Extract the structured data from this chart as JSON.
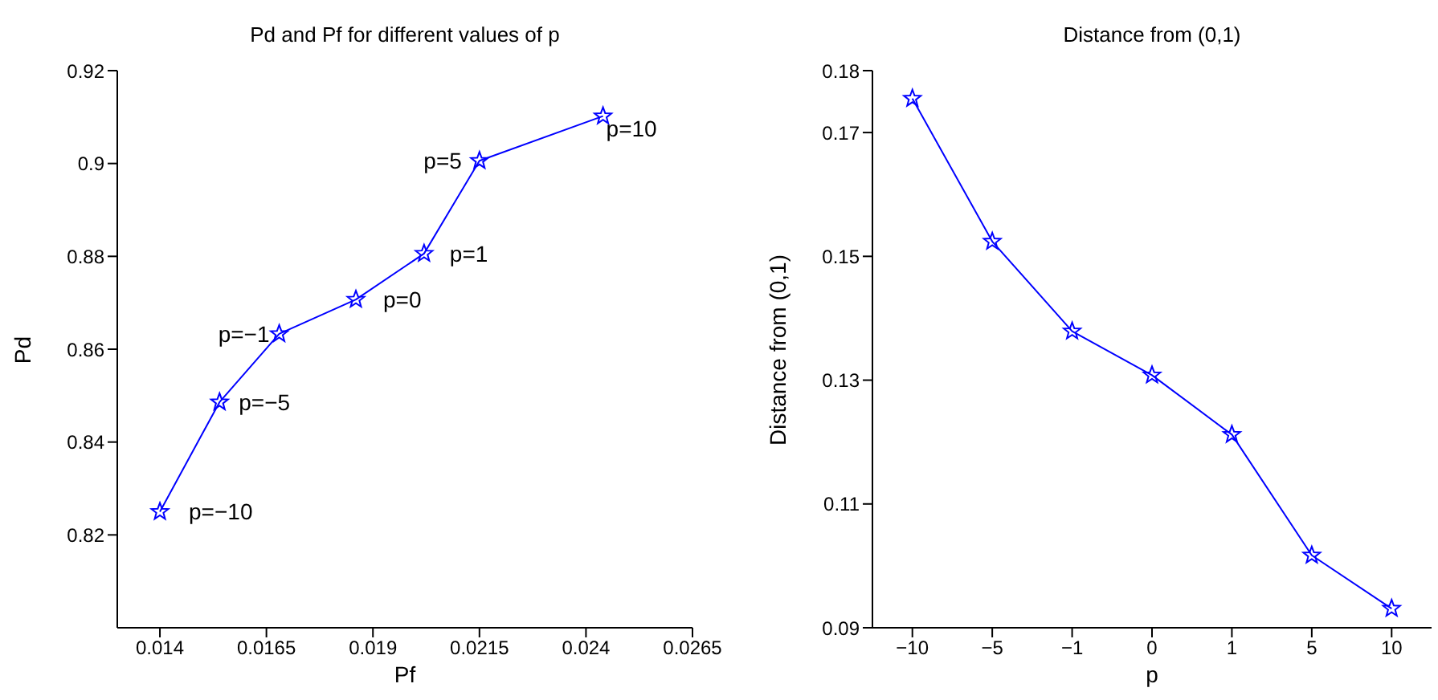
{
  "chart_data": [
    {
      "type": "line",
      "title": "Pd and Pf for different values of p",
      "xlabel": "Pf",
      "ylabel": "Pd",
      "x": [
        0.014,
        0.0154,
        0.0168,
        0.0186,
        0.0202,
        0.0215,
        0.0244
      ],
      "series": [
        {
          "color": "#0000ff",
          "values": [
            0.825,
            0.8486,
            0.8633,
            0.8707,
            0.8806,
            0.9006,
            0.9102
          ]
        }
      ],
      "xlim": [
        0.013,
        0.0265
      ],
      "xticks": [
        0.014,
        0.0165,
        0.019,
        0.0215,
        0.024,
        0.0265
      ],
      "ylim": [
        0.8,
        0.92
      ],
      "yticks": [
        0.82,
        0.84,
        0.86,
        0.88,
        0.9,
        0.92
      ],
      "marker": "star",
      "line_style": "solid",
      "annotations": [
        {
          "text": "p=−10",
          "x": 0.014,
          "y": 0.825
        },
        {
          "text": "p=−5",
          "x": 0.0154,
          "y": 0.8486
        },
        {
          "text": "p=−1",
          "x": 0.0168,
          "y": 0.8633
        },
        {
          "text": "p=0",
          "x": 0.0186,
          "y": 0.8707
        },
        {
          "text": "p=1",
          "x": 0.0202,
          "y": 0.8806
        },
        {
          "text": "p=5",
          "x": 0.0215,
          "y": 0.9006
        },
        {
          "text": "p=10",
          "x": 0.0244,
          "y": 0.9102
        }
      ]
    },
    {
      "type": "line",
      "title": "Distance from (0,1)",
      "xlabel": "p",
      "ylabel": "Distance from (0,1)",
      "categories": [
        "−10",
        "−5",
        "−1",
        "0",
        "1",
        "5",
        "10"
      ],
      "series": [
        {
          "color": "#0000ff",
          "values": [
            0.1755,
            0.1524,
            0.1379,
            0.1308,
            0.1212,
            0.1017,
            0.0931
          ]
        }
      ],
      "ylim": [
        0.09,
        0.18
      ],
      "yticks": [
        0.09,
        0.11,
        0.13,
        0.15,
        0.17,
        0.18
      ],
      "marker": "star",
      "line_style": "solid"
    }
  ]
}
